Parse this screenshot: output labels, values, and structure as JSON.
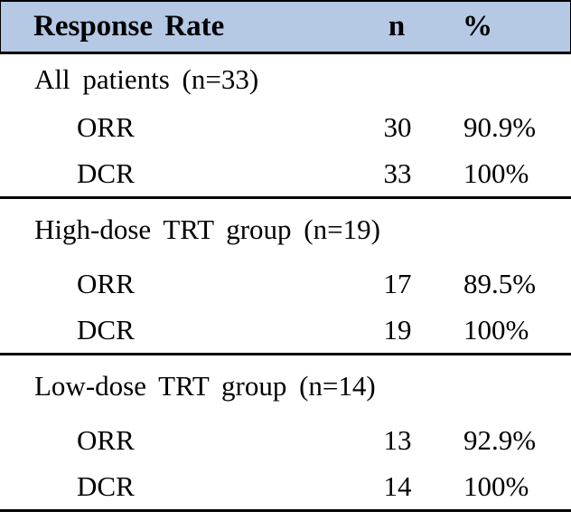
{
  "table": {
    "header": {
      "col1": "Response Rate",
      "col2": "n",
      "col3": "%"
    },
    "sections": [
      {
        "group": "All patients (n=33)",
        "rows": [
          {
            "label": "ORR",
            "n": "30",
            "pct": "90.9%"
          },
          {
            "label": "DCR",
            "n": "33",
            "pct": "100%"
          }
        ]
      },
      {
        "group": "High-dose TRT group (n=19)",
        "rows": [
          {
            "label": "ORR",
            "n": "17",
            "pct": "89.5%"
          },
          {
            "label": "DCR",
            "n": "19",
            "pct": "100%"
          }
        ]
      },
      {
        "group": "Low-dose TRT group (n=14)",
        "rows": [
          {
            "label": "ORR",
            "n": "13",
            "pct": "92.9%"
          },
          {
            "label": "DCR",
            "n": "14",
            "pct": "100%"
          }
        ]
      }
    ],
    "colors": {
      "header_bg": "#b5c8e4",
      "border": "#000000",
      "text": "#000000"
    }
  },
  "chart_data": {
    "type": "table",
    "title": "Response Rate",
    "columns": [
      "Response Rate",
      "n",
      "%"
    ],
    "groups": [
      {
        "name": "All patients",
        "n_total": 33,
        "ORR": {
          "n": 30,
          "pct": "90.9%"
        },
        "DCR": {
          "n": 33,
          "pct": "100%"
        }
      },
      {
        "name": "High-dose TRT group",
        "n_total": 19,
        "ORR": {
          "n": 17,
          "pct": "89.5%"
        },
        "DCR": {
          "n": 19,
          "pct": "100%"
        }
      },
      {
        "name": "Low-dose TRT group",
        "n_total": 14,
        "ORR": {
          "n": 13,
          "pct": "92.9%"
        },
        "DCR": {
          "n": 14,
          "pct": "100%"
        }
      }
    ]
  }
}
